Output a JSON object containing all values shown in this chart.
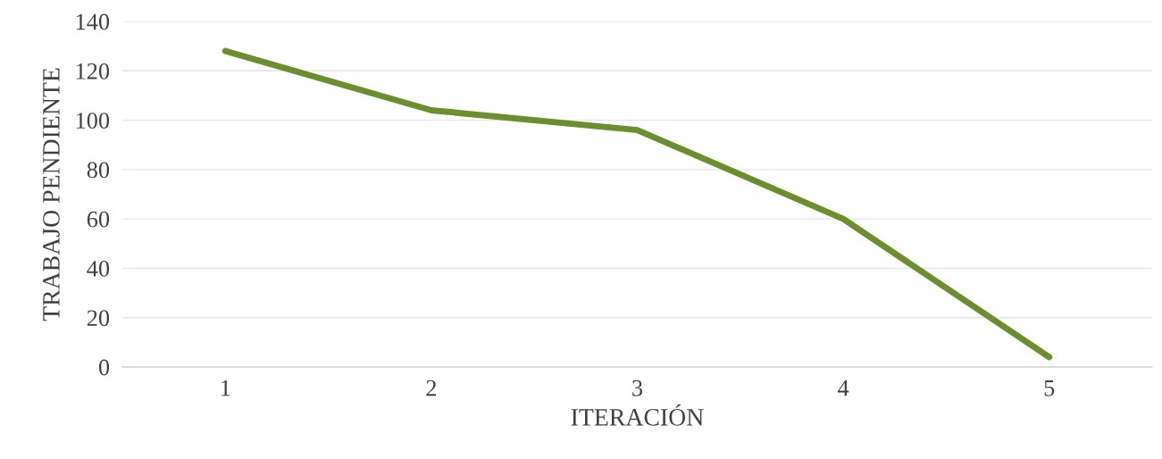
{
  "chart_data": {
    "type": "line",
    "xlabel": "ITERACIÓN",
    "ylabel": "TRABAJO PENDIENTE",
    "categories": [
      "1",
      "2",
      "3",
      "4",
      "5"
    ],
    "series": [
      {
        "color": "#6b8e2f",
        "values": [
          128,
          104,
          96,
          60,
          4
        ]
      }
    ],
    "ylim": [
      0,
      140
    ],
    "yticks": [
      0,
      20,
      40,
      60,
      80,
      100,
      120,
      140
    ],
    "grid": "y",
    "marker": "none",
    "line_style": "solid"
  }
}
